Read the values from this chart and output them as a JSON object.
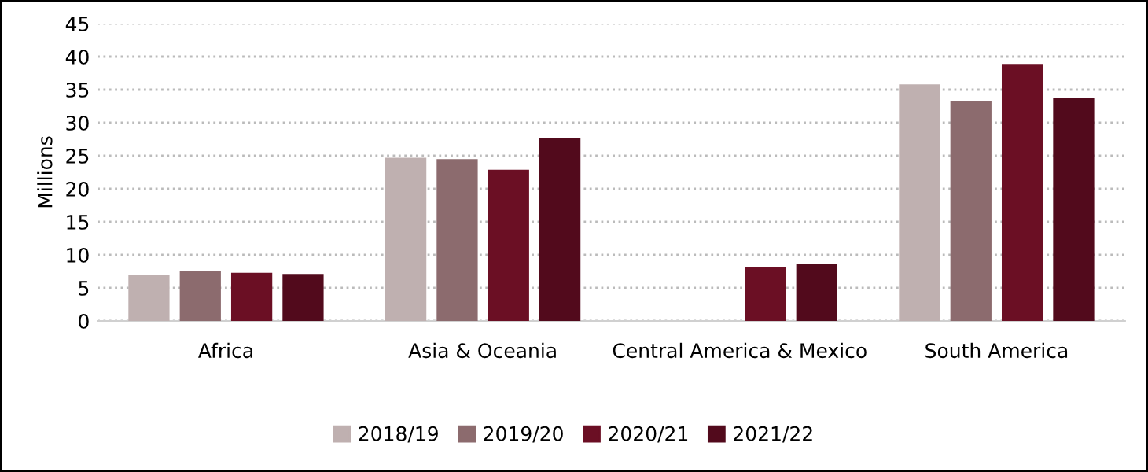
{
  "chart_data": {
    "type": "bar",
    "ylabel": "Millions",
    "categories": [
      "Africa",
      "Asia & Oceania",
      "Central America & Mexico",
      "South America"
    ],
    "series": [
      {
        "name": "2018/19",
        "color": "#bfb0b0",
        "values": [
          7.0,
          24.7,
          null,
          35.8
        ]
      },
      {
        "name": "2019/20",
        "color": "#8c6b6e",
        "values": [
          7.5,
          24.5,
          null,
          33.2
        ]
      },
      {
        "name": "2020/21",
        "color": "#6b0f24",
        "values": [
          7.3,
          22.9,
          8.2,
          38.9
        ]
      },
      {
        "name": "2021/22",
        "color": "#520a1c",
        "values": [
          7.1,
          27.7,
          8.6,
          33.8
        ]
      }
    ],
    "ylim": [
      0,
      45
    ],
    "yticks": [
      0,
      5,
      10,
      15,
      20,
      25,
      30,
      35,
      40,
      45
    ],
    "grid": "y",
    "legend": "bottom"
  }
}
